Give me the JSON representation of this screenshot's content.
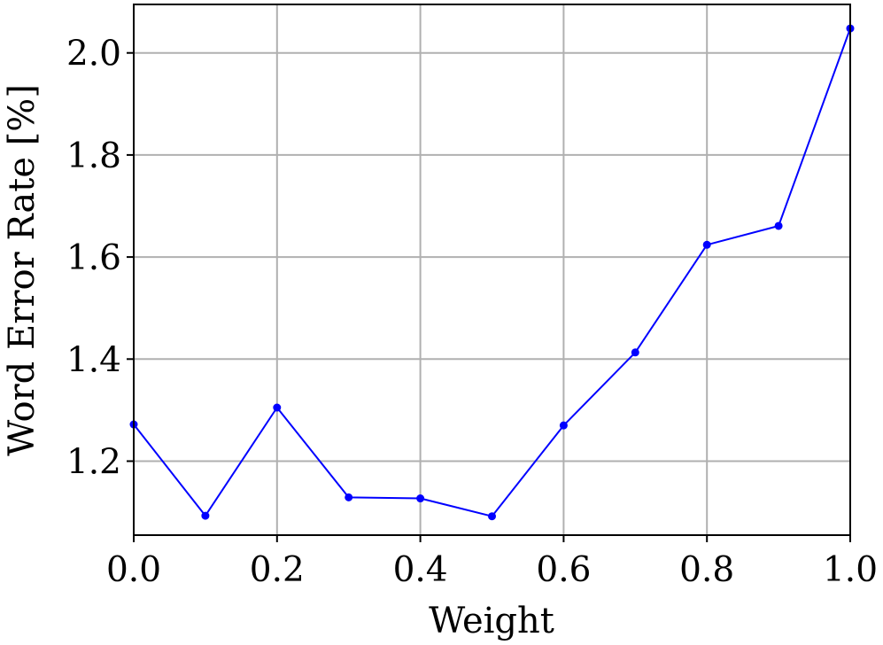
{
  "chart_data": {
    "type": "line",
    "title": "",
    "xlabel": "Weight",
    "ylabel": "Word Error Rate [%]",
    "xlim": [
      0.0,
      1.0
    ],
    "ylim": [
      1.055,
      2.095
    ],
    "xticks": [
      0.0,
      0.2,
      0.4,
      0.6,
      0.8,
      1.0
    ],
    "xtick_labels": [
      "0.0",
      "0.2",
      "0.4",
      "0.6",
      "0.8",
      "1.0"
    ],
    "yticks": [
      1.2,
      1.4,
      1.6,
      1.8,
      2.0
    ],
    "ytick_labels": [
      "1.2",
      "1.4",
      "1.6",
      "1.8",
      "2.0"
    ],
    "grid": true,
    "legend": "none",
    "series": [
      {
        "color": "#0000ff",
        "marker": "circle",
        "x": [
          0.0,
          0.1,
          0.2,
          0.3,
          0.4,
          0.5,
          0.6,
          0.7,
          0.8,
          0.9,
          1.0
        ],
        "y": [
          1.272,
          1.093,
          1.305,
          1.129,
          1.127,
          1.092,
          1.27,
          1.413,
          1.624,
          1.661,
          2.048
        ]
      }
    ]
  }
}
